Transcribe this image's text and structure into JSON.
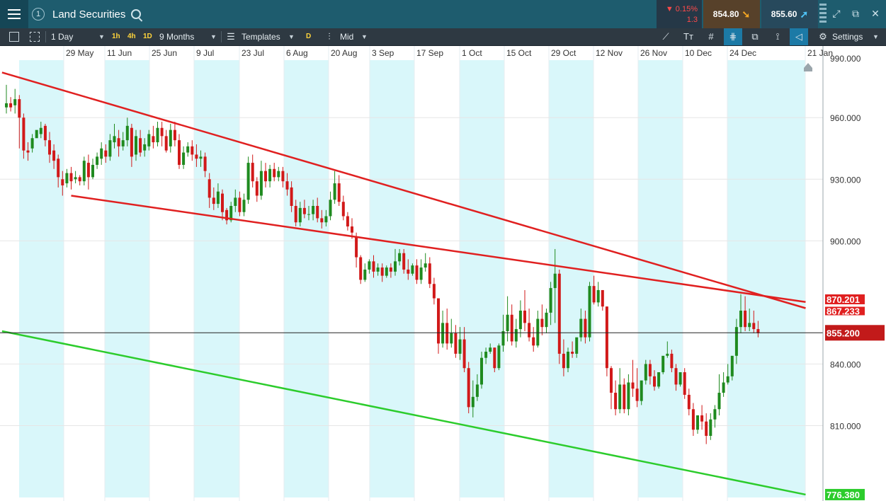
{
  "titlebar": {
    "chart_number": "1",
    "instrument": "Land Securities",
    "change_pct": "0.15%",
    "change_abs": "1.3",
    "sell_price": "854.80",
    "buy_price": "855.60"
  },
  "toolbar": {
    "interval": "1 Day",
    "quick_intervals": [
      "1h",
      "4h",
      "1D"
    ],
    "range": "9 Months",
    "templates_label": "Templates",
    "style_badge": "D",
    "price_type": "Mid",
    "settings_label": "Settings"
  },
  "colors": {
    "bull": "#1f8a1f",
    "bear": "#d11919",
    "resistance_line": "#e02020",
    "support_line": "#2ccc2c",
    "band": "#d9f7fa"
  },
  "chart_data": {
    "type": "candlestick",
    "title": "",
    "xlabel": "",
    "ylabel": "",
    "x_ticks": [
      "29 May",
      "11 Jun",
      "25 Jun",
      "9 Jul",
      "23 Jul",
      "6 Aug",
      "20 Aug",
      "3 Sep",
      "17 Sep",
      "1 Oct",
      "15 Oct",
      "29 Oct",
      "12 Nov",
      "26 Nov",
      "10 Dec",
      "24 Dec",
      "21 Jan"
    ],
    "y_ticks": [
      "960.000",
      "930.000",
      "900.000",
      "840.000",
      "810.000"
    ],
    "y_top_partial_label": "990.000",
    "ylim": [
      775,
      988
    ],
    "current_price": "855.200",
    "current_value": 855.2,
    "red_line_label": "870.201",
    "red_line_label_2": "867.233",
    "green_line_label": "776.380",
    "trendlines": [
      {
        "name": "upper-resistance",
        "color": "red",
        "from": {
          "bar": -1,
          "value": 982
        },
        "to": {
          "bar": 185,
          "value": 867.2
        }
      },
      {
        "name": "lower-resistance",
        "color": "red",
        "from": {
          "bar": 15,
          "value": 922
        },
        "to": {
          "bar": 185,
          "value": 870.2
        }
      },
      {
        "name": "support",
        "color": "green",
        "from": {
          "bar": -1,
          "value": 856
        },
        "to": {
          "bar": 185,
          "value": 776.4
        }
      }
    ],
    "candles": [
      [
        965,
        976,
        967,
        962
      ],
      [
        967,
        970,
        965,
        963
      ],
      [
        966,
        974,
        969,
        962
      ],
      [
        969,
        971,
        960,
        945
      ],
      [
        960,
        962,
        944,
        940
      ],
      [
        944,
        948,
        943,
        939
      ],
      [
        945,
        952,
        950,
        943
      ],
      [
        950,
        953,
        954,
        951
      ],
      [
        952,
        958,
        955,
        950
      ],
      [
        956,
        957,
        949,
        946
      ],
      [
        949,
        953,
        942,
        938
      ],
      [
        944,
        947,
        939,
        935
      ],
      [
        940,
        942,
        931,
        926
      ],
      [
        930,
        934,
        927,
        922
      ],
      [
        928,
        935,
        933,
        926
      ],
      [
        933,
        936,
        929,
        925
      ],
      [
        930,
        934,
        931,
        928
      ],
      [
        931,
        932,
        929,
        927
      ],
      [
        929,
        941,
        939,
        927
      ],
      [
        938,
        942,
        931,
        925
      ],
      [
        931,
        940,
        937,
        930
      ],
      [
        937,
        943,
        941,
        935
      ],
      [
        940,
        948,
        945,
        937
      ],
      [
        944,
        947,
        941,
        938
      ],
      [
        941,
        952,
        949,
        939
      ],
      [
        948,
        957,
        951,
        945
      ],
      [
        950,
        954,
        946,
        941
      ],
      [
        946,
        953,
        949,
        944
      ],
      [
        949,
        960,
        956,
        946
      ],
      [
        955,
        957,
        941,
        936
      ],
      [
        942,
        954,
        951,
        939
      ],
      [
        950,
        954,
        943,
        941
      ],
      [
        944,
        950,
        947,
        941
      ],
      [
        946,
        954,
        952,
        944
      ],
      [
        951,
        956,
        948,
        945
      ],
      [
        948,
        958,
        955,
        946
      ],
      [
        955,
        958,
        951,
        946
      ],
      [
        951,
        954,
        944,
        943
      ],
      [
        946,
        957,
        954,
        943
      ],
      [
        954,
        958,
        949,
        946
      ],
      [
        949,
        952,
        937,
        935
      ],
      [
        937,
        946,
        943,
        935
      ],
      [
        943,
        948,
        946,
        941
      ],
      [
        946,
        949,
        942,
        939
      ],
      [
        942,
        947,
        940,
        936
      ],
      [
        940,
        944,
        941,
        936
      ],
      [
        941,
        943,
        934,
        931
      ],
      [
        930,
        933,
        921,
        916
      ],
      [
        921,
        926,
        918,
        915
      ],
      [
        918,
        928,
        924,
        916
      ],
      [
        923,
        925,
        914,
        910
      ],
      [
        915,
        916,
        910,
        908
      ],
      [
        910,
        919,
        917,
        909
      ],
      [
        917,
        925,
        921,
        914
      ],
      [
        921,
        924,
        914,
        912
      ],
      [
        914,
        923,
        920,
        912
      ],
      [
        920,
        941,
        938,
        918
      ],
      [
        938,
        942,
        929,
        926
      ],
      [
        929,
        931,
        922,
        919
      ],
      [
        922,
        939,
        934,
        920
      ],
      [
        934,
        938,
        929,
        926
      ],
      [
        929,
        937,
        935,
        926
      ],
      [
        935,
        938,
        931,
        929
      ],
      [
        931,
        936,
        934,
        929
      ],
      [
        934,
        936,
        929,
        926
      ],
      [
        929,
        933,
        925,
        922
      ],
      [
        926,
        929,
        917,
        914
      ],
      [
        917,
        920,
        909,
        907
      ],
      [
        909,
        919,
        916,
        907
      ],
      [
        916,
        920,
        913,
        911
      ],
      [
        913,
        917,
        913,
        910
      ],
      [
        913,
        920,
        917,
        910
      ],
      [
        917,
        921,
        911,
        909
      ],
      [
        911,
        915,
        909,
        906
      ],
      [
        909,
        915,
        912,
        907
      ],
      [
        912,
        924,
        920,
        910
      ],
      [
        920,
        934,
        928,
        918
      ],
      [
        928,
        932,
        919,
        917
      ],
      [
        919,
        922,
        912,
        910
      ],
      [
        912,
        914,
        907,
        905
      ],
      [
        907,
        911,
        904,
        901
      ],
      [
        902,
        904,
        892,
        887
      ],
      [
        892,
        893,
        881,
        879
      ],
      [
        881,
        889,
        886,
        880
      ],
      [
        886,
        891,
        890,
        884
      ],
      [
        890,
        893,
        885,
        882
      ],
      [
        885,
        889,
        887,
        883
      ],
      [
        887,
        889,
        883,
        880
      ],
      [
        883,
        888,
        887,
        882
      ],
      [
        887,
        889,
        885,
        882
      ],
      [
        885,
        896,
        890,
        883
      ],
      [
        890,
        896,
        894,
        888
      ],
      [
        894,
        896,
        886,
        884
      ],
      [
        886,
        891,
        884,
        881
      ],
      [
        884,
        889,
        888,
        883
      ],
      [
        888,
        891,
        881,
        879
      ],
      [
        881,
        891,
        887,
        879
      ],
      [
        887,
        894,
        889,
        885
      ],
      [
        889,
        892,
        879,
        877
      ],
      [
        879,
        882,
        872,
        869
      ],
      [
        872,
        870,
        850,
        845
      ],
      [
        850,
        866,
        860,
        848
      ],
      [
        860,
        867,
        850,
        847
      ],
      [
        850,
        862,
        855,
        848
      ],
      [
        855,
        859,
        845,
        843
      ],
      [
        845,
        858,
        852,
        842
      ],
      [
        852,
        858,
        838,
        836
      ],
      [
        838,
        841,
        819,
        816
      ],
      [
        819,
        832,
        824,
        814
      ],
      [
        824,
        835,
        830,
        822
      ],
      [
        830,
        846,
        843,
        828
      ],
      [
        843,
        848,
        846,
        840
      ],
      [
        846,
        850,
        848,
        845
      ],
      [
        848,
        848,
        838,
        836
      ],
      [
        838,
        850,
        849,
        837
      ],
      [
        849,
        864,
        856,
        846
      ],
      [
        856,
        873,
        864,
        851
      ],
      [
        864,
        869,
        851,
        849
      ],
      [
        851,
        862,
        857,
        848
      ],
      [
        857,
        871,
        866,
        853
      ],
      [
        866,
        876,
        860,
        856
      ],
      [
        860,
        867,
        853,
        851
      ],
      [
        853,
        858,
        849,
        846
      ],
      [
        849,
        866,
        862,
        848
      ],
      [
        862,
        869,
        858,
        854
      ],
      [
        858,
        867,
        865,
        855
      ],
      [
        865,
        880,
        877,
        859
      ],
      [
        877,
        896,
        884,
        860
      ],
      [
        884,
        886,
        845,
        840
      ],
      [
        845,
        852,
        838,
        834
      ],
      [
        838,
        848,
        846,
        836
      ],
      [
        846,
        851,
        845,
        843
      ],
      [
        845,
        849,
        853,
        843
      ],
      [
        853,
        867,
        862,
        851
      ],
      [
        862,
        866,
        853,
        850
      ],
      [
        853,
        880,
        878,
        851
      ],
      [
        878,
        883,
        870,
        869
      ],
      [
        870,
        880,
        876,
        868
      ],
      [
        876,
        876,
        868,
        866
      ],
      [
        868,
        868,
        838,
        834
      ],
      [
        838,
        839,
        826,
        818
      ],
      [
        826,
        832,
        818,
        815
      ],
      [
        818,
        838,
        830,
        816
      ],
      [
        830,
        833,
        818,
        816
      ],
      [
        818,
        835,
        831,
        815
      ],
      [
        831,
        842,
        828,
        824
      ],
      [
        828,
        838,
        822,
        819
      ],
      [
        822,
        830,
        832,
        820
      ],
      [
        832,
        842,
        840,
        830
      ],
      [
        840,
        842,
        834,
        830
      ],
      [
        834,
        837,
        829,
        827
      ],
      [
        829,
        832,
        836,
        828
      ],
      [
        836,
        841,
        844,
        835
      ],
      [
        844,
        851,
        845,
        843
      ],
      [
        845,
        847,
        838,
        836
      ],
      [
        838,
        840,
        830,
        827
      ],
      [
        830,
        836,
        836,
        829
      ],
      [
        836,
        838,
        825,
        823
      ],
      [
        825,
        828,
        818,
        815
      ],
      [
        818,
        821,
        808,
        805
      ],
      [
        808,
        813,
        815,
        806
      ],
      [
        815,
        820,
        812,
        808
      ],
      [
        812,
        816,
        805,
        801
      ],
      [
        805,
        816,
        813,
        803
      ],
      [
        813,
        820,
        818,
        809
      ],
      [
        818,
        835,
        826,
        815
      ],
      [
        826,
        836,
        831,
        824
      ],
      [
        831,
        840,
        834,
        830
      ],
      [
        834,
        838,
        844,
        832
      ],
      [
        844,
        862,
        858,
        840
      ],
      [
        858,
        874,
        866,
        855
      ],
      [
        866,
        873,
        858,
        856
      ],
      [
        858,
        867,
        860,
        856
      ],
      [
        860,
        866,
        857,
        855
      ],
      [
        857,
        861,
        855,
        853
      ]
    ]
  }
}
